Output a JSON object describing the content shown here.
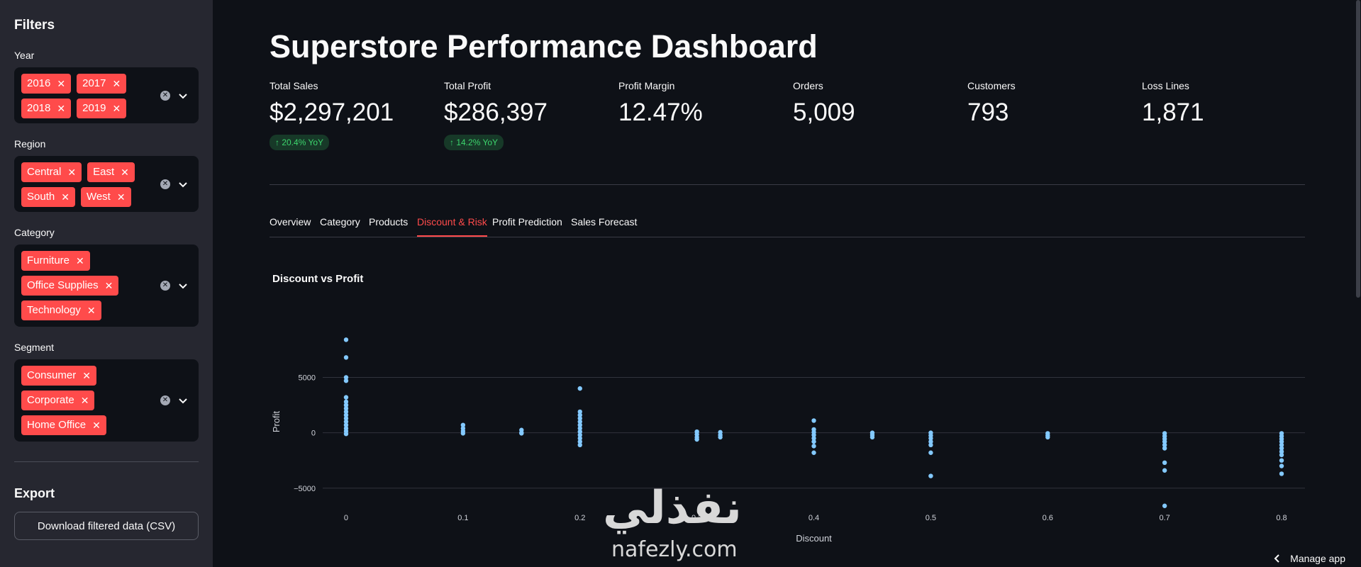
{
  "sidebar": {
    "title": "Filters",
    "filters": [
      {
        "label": "Year",
        "chips": [
          "2016",
          "2017",
          "2018",
          "2019"
        ]
      },
      {
        "label": "Region",
        "chips": [
          "Central",
          "East",
          "South",
          "West"
        ]
      },
      {
        "label": "Category",
        "chips": [
          "Furniture",
          "Office Supplies",
          "Technology"
        ]
      },
      {
        "label": "Segment",
        "chips": [
          "Consumer",
          "Corporate",
          "Home Office"
        ]
      }
    ],
    "export_title": "Export",
    "download_label": "Download filtered data (CSV)"
  },
  "main": {
    "title": "Superstore Performance Dashboard",
    "metrics": [
      {
        "label": "Total Sales",
        "value": "$2,297,201",
        "delta": "↑ 20.4% YoY"
      },
      {
        "label": "Total Profit",
        "value": "$286,397",
        "delta": "↑ 14.2% YoY"
      },
      {
        "label": "Profit Margin",
        "value": "12.47%"
      },
      {
        "label": "Orders",
        "value": "5,009"
      },
      {
        "label": "Customers",
        "value": "793"
      },
      {
        "label": "Loss Lines",
        "value": "1,871"
      }
    ],
    "tabs": [
      "Overview",
      "Category",
      "Products",
      "Discount & Risk",
      "Profit Prediction",
      "Sales Forecast"
    ],
    "active_tab": "Discount & Risk",
    "chart_title": "Discount vs Profit"
  },
  "chart_data": {
    "type": "scatter",
    "title": "Discount vs Profit",
    "xlabel": "Discount",
    "ylabel": "Profit",
    "x_ticks": [
      0,
      0.1,
      0.2,
      0.3,
      0.4,
      0.5,
      0.6,
      0.7,
      0.8
    ],
    "y_ticks": [
      {
        "value": 5000,
        "label": "5000"
      },
      {
        "value": 0,
        "label": "0"
      },
      {
        "value": -5000,
        "label": "−5000"
      }
    ],
    "xlim": [
      -0.02,
      0.82
    ],
    "ylim": [
      -7000,
      9000
    ],
    "color": "#83c9ff",
    "points": [
      [
        0,
        8400
      ],
      [
        0,
        6800
      ],
      [
        0,
        5000
      ],
      [
        0,
        4700
      ],
      [
        0,
        3200
      ],
      [
        0,
        2800
      ],
      [
        0,
        2500
      ],
      [
        0,
        2200
      ],
      [
        0,
        1900
      ],
      [
        0,
        1600
      ],
      [
        0,
        1300
      ],
      [
        0,
        1000
      ],
      [
        0,
        700
      ],
      [
        0,
        400
      ],
      [
        0,
        150
      ],
      [
        0,
        -100
      ],
      [
        0.1,
        700
      ],
      [
        0.1,
        400
      ],
      [
        0.1,
        150
      ],
      [
        0.1,
        -50
      ],
      [
        0.15,
        250
      ],
      [
        0.15,
        0
      ],
      [
        0.15,
        -50
      ],
      [
        0.2,
        4000
      ],
      [
        0.2,
        1900
      ],
      [
        0.2,
        1600
      ],
      [
        0.2,
        1300
      ],
      [
        0.2,
        1000
      ],
      [
        0.2,
        700
      ],
      [
        0.2,
        400
      ],
      [
        0.2,
        100
      ],
      [
        0.2,
        -200
      ],
      [
        0.2,
        -500
      ],
      [
        0.2,
        -800
      ],
      [
        0.2,
        -1100
      ],
      [
        0.3,
        100
      ],
      [
        0.3,
        -150
      ],
      [
        0.3,
        -400
      ],
      [
        0.3,
        -600
      ],
      [
        0.32,
        50
      ],
      [
        0.32,
        -200
      ],
      [
        0.32,
        -400
      ],
      [
        0.4,
        1100
      ],
      [
        0.4,
        300
      ],
      [
        0.4,
        50
      ],
      [
        0.4,
        -200
      ],
      [
        0.4,
        -500
      ],
      [
        0.4,
        -800
      ],
      [
        0.4,
        -1200
      ],
      [
        0.4,
        -1800
      ],
      [
        0.45,
        0
      ],
      [
        0.45,
        -200
      ],
      [
        0.45,
        -400
      ],
      [
        0.5,
        0
      ],
      [
        0.5,
        -250
      ],
      [
        0.5,
        -500
      ],
      [
        0.5,
        -800
      ],
      [
        0.5,
        -1100
      ],
      [
        0.5,
        -1800
      ],
      [
        0.5,
        -3900
      ],
      [
        0.6,
        -50
      ],
      [
        0.6,
        -250
      ],
      [
        0.6,
        -400
      ],
      [
        0.7,
        -50
      ],
      [
        0.7,
        -300
      ],
      [
        0.7,
        -550
      ],
      [
        0.7,
        -800
      ],
      [
        0.7,
        -1100
      ],
      [
        0.7,
        -1400
      ],
      [
        0.7,
        -2700
      ],
      [
        0.7,
        -3400
      ],
      [
        0.7,
        -6600
      ],
      [
        0.8,
        -50
      ],
      [
        0.8,
        -300
      ],
      [
        0.8,
        -550
      ],
      [
        0.8,
        -800
      ],
      [
        0.8,
        -1100
      ],
      [
        0.8,
        -1400
      ],
      [
        0.8,
        -1700
      ],
      [
        0.8,
        -2000
      ],
      [
        0.8,
        -2500
      ],
      [
        0.8,
        -3000
      ],
      [
        0.8,
        -3700
      ]
    ]
  },
  "watermark": {
    "arabic": "نفذلي",
    "latin": "nafezly.com"
  },
  "footer": {
    "manage_label": "Manage app"
  }
}
